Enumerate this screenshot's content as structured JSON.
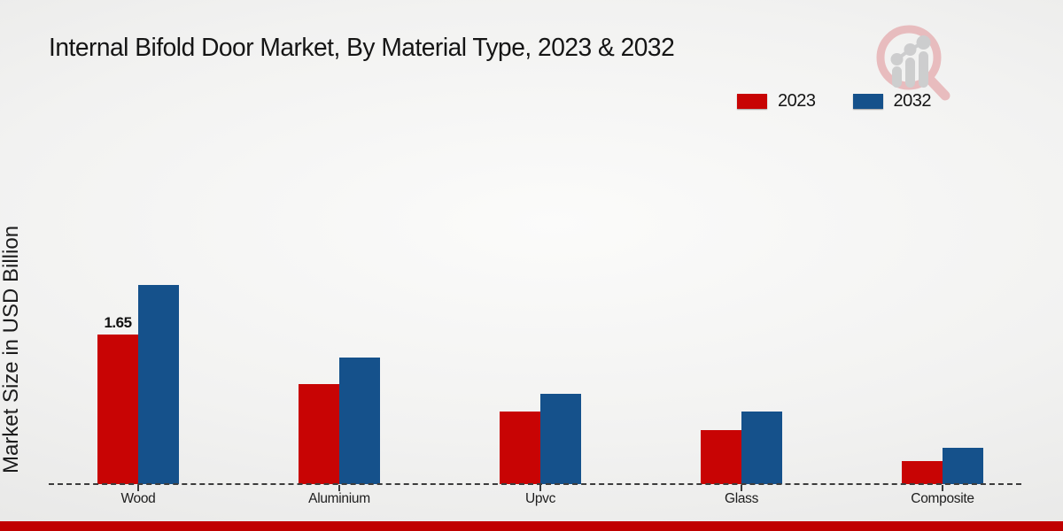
{
  "chart_data": {
    "type": "bar",
    "title": "Internal Bifold Door Market, By Material Type, 2023 & 2032",
    "ylabel": "Market Size in USD Billion",
    "categories": [
      "Wood",
      "Aluminium",
      "Upvc",
      "Glass",
      "Composite"
    ],
    "series": [
      {
        "name": "2023",
        "color": "#c80404",
        "values": [
          1.65,
          1.1,
          0.8,
          0.6,
          0.25
        ]
      },
      {
        "name": "2032",
        "color": "#15518b",
        "values": [
          2.2,
          1.4,
          1.0,
          0.8,
          0.4
        ]
      }
    ],
    "shown_labels": [
      {
        "series": "2023",
        "category": "Wood",
        "text": "1.65"
      }
    ],
    "ylim": [
      0,
      2.4
    ],
    "grid": false,
    "legend_position": "top-right",
    "x_axis_style": "dashed"
  },
  "branding": {
    "logo_icon": "magnifier-bar-chart-logo",
    "accent_red": "#c00000",
    "logo_circle_color": "#e7b7b9",
    "logo_bar_color": "#c9cacb"
  }
}
